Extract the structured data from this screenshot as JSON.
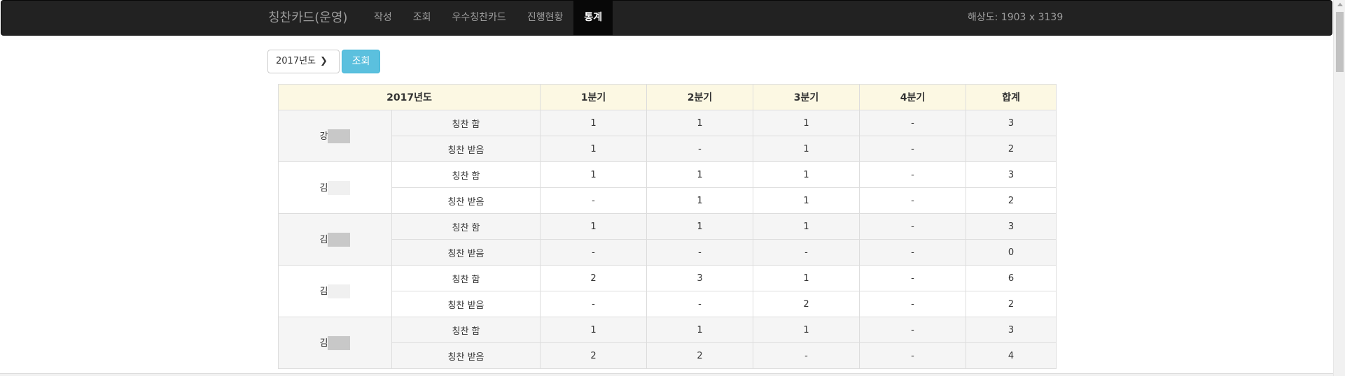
{
  "navbar": {
    "brand": "칭찬카드(운영)",
    "items": [
      {
        "label": "작성",
        "active": false
      },
      {
        "label": "조회",
        "active": false
      },
      {
        "label": "우수칭찬카드",
        "active": false
      },
      {
        "label": "진행현황",
        "active": false
      },
      {
        "label": "통계",
        "active": true
      }
    ],
    "resolution": "해상도: 1903 x 3139"
  },
  "controls": {
    "year_value": "2017년도",
    "search_label": "조회"
  },
  "table": {
    "headers": [
      "2017년도",
      "1분기",
      "2분기",
      "3분기",
      "4분기",
      "합계"
    ],
    "people": [
      {
        "name": "강",
        "masked": true,
        "rows": [
          {
            "label": "칭찬 함",
            "q1": "1",
            "q2": "1",
            "q3": "1",
            "q4": "-",
            "total": "3"
          },
          {
            "label": "칭찬 받음",
            "q1": "1",
            "q2": "-",
            "q3": "1",
            "q4": "-",
            "total": "2"
          }
        ]
      },
      {
        "name": "김",
        "masked": false,
        "rows": [
          {
            "label": "칭찬 함",
            "q1": "1",
            "q2": "1",
            "q3": "1",
            "q4": "-",
            "total": "3"
          },
          {
            "label": "칭찬 받음",
            "q1": "-",
            "q2": "1",
            "q3": "1",
            "q4": "-",
            "total": "2"
          }
        ]
      },
      {
        "name": "김",
        "masked": true,
        "rows": [
          {
            "label": "칭찬 함",
            "q1": "1",
            "q2": "1",
            "q3": "1",
            "q4": "-",
            "total": "3"
          },
          {
            "label": "칭찬 받음",
            "q1": "-",
            "q2": "-",
            "q3": "-",
            "q4": "-",
            "total": "0"
          }
        ]
      },
      {
        "name": "김",
        "masked": false,
        "rows": [
          {
            "label": "칭찬 함",
            "q1": "2",
            "q2": "3",
            "q3": "1",
            "q4": "-",
            "total": "6"
          },
          {
            "label": "칭찬 받음",
            "q1": "-",
            "q2": "-",
            "q3": "2",
            "q4": "-",
            "total": "2"
          }
        ]
      },
      {
        "name": "김",
        "masked": true,
        "rows": [
          {
            "label": "칭찬 함",
            "q1": "1",
            "q2": "1",
            "q3": "1",
            "q4": "-",
            "total": "3"
          },
          {
            "label": "칭찬 받음",
            "q1": "2",
            "q2": "2",
            "q3": "-",
            "q4": "-",
            "total": "4"
          }
        ]
      }
    ]
  },
  "colors": {
    "navbar_bg": "#222222",
    "header_bg": "#fcf8e3",
    "striped_bg": "#f5f5f5",
    "button_bg": "#5bc0de"
  }
}
